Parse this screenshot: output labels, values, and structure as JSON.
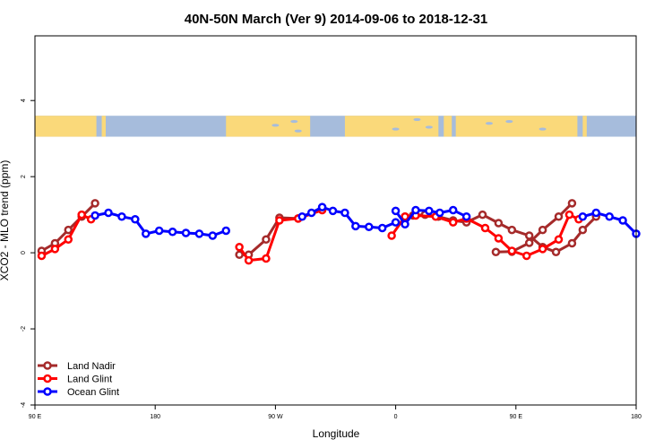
{
  "chart_data": {
    "type": "line",
    "title": "40N-50N March (Ver 9)   2014-09-06 to 2018-12-31",
    "xlabel": "Longitude",
    "ylabel": "XCO2 - MLO trend (ppm)",
    "xlim": [
      90,
      540
    ],
    "ylim": [
      -4.0,
      5.7
    ],
    "x_ticks": [
      {
        "value": 90,
        "label": "90 E"
      },
      {
        "value": 180,
        "label": "180"
      },
      {
        "value": 270,
        "label": "90 W"
      },
      {
        "value": 360,
        "label": "0"
      },
      {
        "value": 450,
        "label": "90 E"
      },
      {
        "value": 540,
        "label": "180"
      }
    ],
    "y_ticks": [
      {
        "value": -4,
        "label": "-4"
      },
      {
        "value": -2,
        "label": "-2"
      },
      {
        "value": 0,
        "label": "0"
      },
      {
        "value": 2,
        "label": "2"
      },
      {
        "value": 4,
        "label": "4"
      }
    ],
    "map_band": {
      "y_range": [
        3.05,
        3.6
      ],
      "land_color": "#fad97a",
      "ocean_color": "#a6bcdc"
    },
    "legend_position": "bottom-left",
    "series": [
      {
        "name": "Land Nadir",
        "color": "#a52a2a",
        "segments": [
          [
            [
              95,
              0.05
            ],
            [
              105,
              0.25
            ],
            [
              115,
              0.6
            ],
            [
              125,
              0.95
            ],
            [
              135,
              1.3
            ]
          ],
          [
            [
              243,
              -0.05
            ],
            [
              250,
              -0.05
            ],
            [
              263,
              0.35
            ],
            [
              273,
              0.92
            ],
            [
              287,
              0.9
            ],
            [
              305,
              1.18
            ]
          ],
          [
            [
              435,
              0.02
            ],
            [
              447,
              0.03
            ],
            [
              460,
              0.26
            ],
            [
              470,
              0.6
            ],
            [
              482,
              0.95
            ],
            [
              492,
              1.3
            ]
          ],
          [
            [
              367,
              0.95
            ],
            [
              373,
              0.98
            ],
            [
              382,
              1.0
            ],
            [
              392,
              0.95
            ],
            [
              403,
              0.85
            ],
            [
              413,
              0.8
            ],
            [
              425,
              1.0
            ],
            [
              437,
              0.78
            ],
            [
              447,
              0.6
            ],
            [
              460,
              0.45
            ],
            [
              470,
              0.15
            ],
            [
              480,
              0.02
            ],
            [
              492,
              0.25
            ],
            [
              500,
              0.6
            ],
            [
              510,
              0.95
            ]
          ]
        ]
      },
      {
        "name": "Land Glint",
        "color": "#ff0000",
        "segments": [
          [
            [
              95,
              -0.08
            ],
            [
              105,
              0.1
            ],
            [
              115,
              0.35
            ],
            [
              125,
              1.0
            ],
            [
              132,
              0.88
            ]
          ],
          [
            [
              243,
              0.15
            ],
            [
              250,
              -0.2
            ],
            [
              263,
              -0.15
            ],
            [
              273,
              0.85
            ],
            [
              287,
              0.9
            ],
            [
              305,
              1.12
            ]
          ],
          [
            [
              357,
              0.45
            ],
            [
              367,
              0.95
            ],
            [
              375,
              0.98
            ],
            [
              390,
              0.95
            ],
            [
              403,
              0.8
            ],
            [
              413,
              0.9
            ],
            [
              427,
              0.65
            ],
            [
              437,
              0.38
            ],
            [
              447,
              0.05
            ],
            [
              458,
              -0.08
            ],
            [
              470,
              0.1
            ],
            [
              482,
              0.35
            ],
            [
              490,
              1.0
            ],
            [
              497,
              0.88
            ]
          ]
        ]
      },
      {
        "name": "Ocean Glint",
        "color": "#0000ff",
        "segments": [
          [
            [
              135,
              0.98
            ],
            [
              145,
              1.05
            ],
            [
              155,
              0.95
            ],
            [
              165,
              0.88
            ],
            [
              173,
              0.5
            ],
            [
              183,
              0.58
            ],
            [
              193,
              0.55
            ],
            [
              203,
              0.52
            ],
            [
              213,
              0.5
            ],
            [
              223,
              0.45
            ],
            [
              233,
              0.58
            ]
          ],
          [
            [
              290,
              0.95
            ],
            [
              297,
              1.05
            ],
            [
              305,
              1.2
            ],
            [
              313,
              1.1
            ],
            [
              322,
              1.05
            ],
            [
              330,
              0.7
            ],
            [
              340,
              0.68
            ],
            [
              350,
              0.65
            ],
            [
              360,
              0.8
            ]
          ],
          [
            [
              360,
              1.1
            ],
            [
              367,
              0.75
            ],
            [
              375,
              1.12
            ],
            [
              385,
              1.1
            ],
            [
              393,
              1.05
            ],
            [
              403,
              1.12
            ],
            [
              413,
              0.95
            ]
          ],
          [
            [
              500,
              0.95
            ],
            [
              510,
              1.05
            ],
            [
              520,
              0.95
            ],
            [
              530,
              0.85
            ],
            [
              540,
              0.5
            ]
          ]
        ]
      }
    ]
  }
}
